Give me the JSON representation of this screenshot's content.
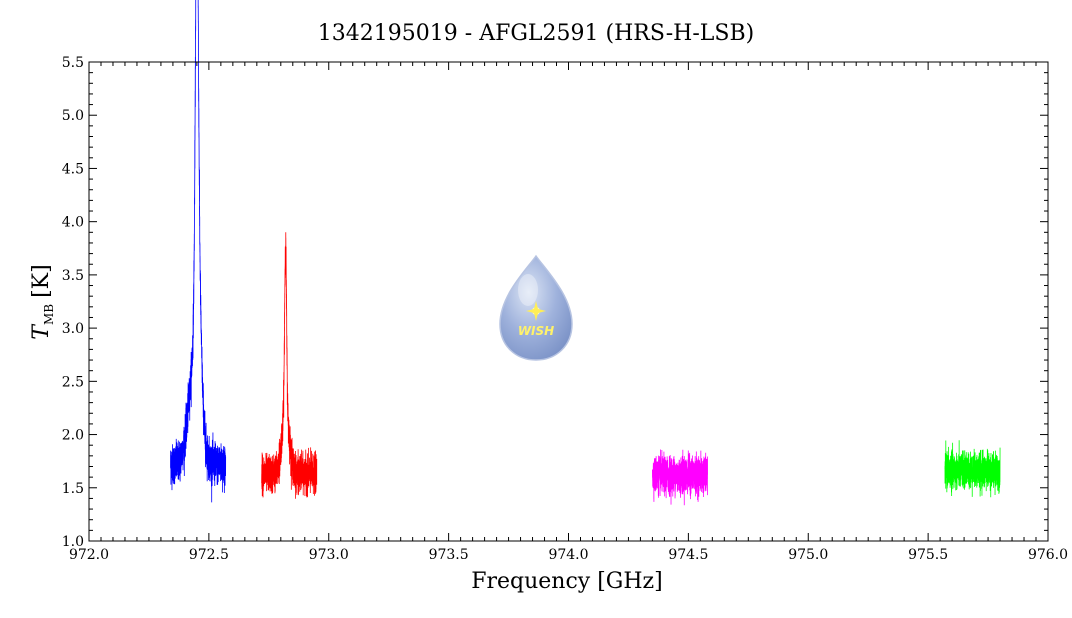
{
  "chart_data": {
    "type": "line",
    "title": "1342195019 - AFGL2591 (HRS-H-LSB)",
    "xlabel": "Frequency [GHz]",
    "ylabel_main": "T",
    "ylabel_sub": "MB",
    "ylabel_unit": "[K]",
    "xlim": [
      972.0,
      976.0
    ],
    "ylim": [
      1.0,
      5.5
    ],
    "x_ticks": [
      "972.0",
      "972.5",
      "973.0",
      "973.5",
      "974.0",
      "974.5",
      "975.0",
      "975.5",
      "976.0"
    ],
    "y_ticks": [
      "1.0",
      "1.5",
      "2.0",
      "2.5",
      "3.0",
      "3.5",
      "4.0",
      "4.5",
      "5.0",
      "5.5"
    ],
    "grid": false,
    "series": [
      {
        "color": "#0000ff",
        "x_range": [
          972.34,
          972.57
        ],
        "baseline": 1.72,
        "noise": 0.22,
        "peaks": [
          {
            "x": 972.45,
            "height": 3.45,
            "width": 0.006
          },
          {
            "x": 972.455,
            "height": 1.3,
            "width": 0.012
          },
          {
            "x": 972.44,
            "height": 0.9,
            "width": 0.025
          }
        ]
      },
      {
        "color": "#ff0000",
        "x_range": [
          972.72,
          972.95
        ],
        "baseline": 1.63,
        "noise": 0.2,
        "peaks": [
          {
            "x": 972.82,
            "height": 1.55,
            "width": 0.004
          },
          {
            "x": 972.82,
            "height": 0.6,
            "width": 0.015
          }
        ]
      },
      {
        "color": "#ff00ff",
        "x_range": [
          974.35,
          974.58
        ],
        "baseline": 1.62,
        "noise": 0.2,
        "peaks": []
      },
      {
        "color": "#00ff00",
        "x_range": [
          975.57,
          975.8
        ],
        "baseline": 1.66,
        "noise": 0.19,
        "peaks": []
      }
    ]
  },
  "logo": {
    "text": "WISH"
  }
}
